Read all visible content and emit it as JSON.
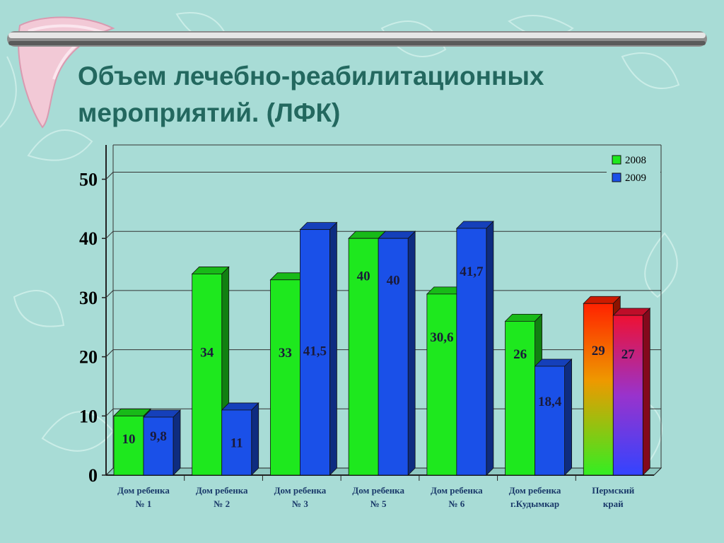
{
  "slide": {
    "title": "Объем лечебно-реабилитационных мероприятий. (ЛФК)"
  },
  "colors": {
    "background": "#a8dcd6",
    "title": "#23685f",
    "series_2008": "#1ee81e",
    "series_2009": "#1a50e8",
    "highlight_2008_top": "#ff2200",
    "highlight_2008_bottom": "#33ee22",
    "highlight_2009_top": "#ee1133",
    "highlight_2009_bottom": "#3344ff"
  },
  "chart_data": {
    "type": "bar",
    "title": "",
    "xlabel": "",
    "ylabel": "",
    "ylim": [
      0,
      50
    ],
    "yticks": [
      "0",
      "10",
      "20",
      "30",
      "40",
      "50"
    ],
    "grid": true,
    "legend_position": "top-right",
    "categories": [
      [
        "Дом ребенка",
        "№ 1"
      ],
      [
        "Дом ребенка",
        "№ 2"
      ],
      [
        "Дом ребенка",
        "№ 3"
      ],
      [
        "Дом ребенка",
        "№ 5"
      ],
      [
        "Дом ребенка",
        "№ 6"
      ],
      [
        "Дом ребенка",
        "г.Кудымкар"
      ],
      [
        "Пермский",
        "край"
      ]
    ],
    "series": [
      {
        "name": "2008",
        "values": [
          10,
          34,
          33,
          40,
          30.6,
          26,
          29
        ],
        "labels": [
          "10",
          "34",
          "33",
          "40",
          "30,6",
          "26",
          "29"
        ]
      },
      {
        "name": "2009",
        "values": [
          9.8,
          11,
          41.5,
          40,
          41.7,
          18.4,
          27
        ],
        "labels": [
          "9,8",
          "11",
          "41,5",
          "40",
          "41,7",
          "18,4",
          "27"
        ]
      }
    ]
  }
}
